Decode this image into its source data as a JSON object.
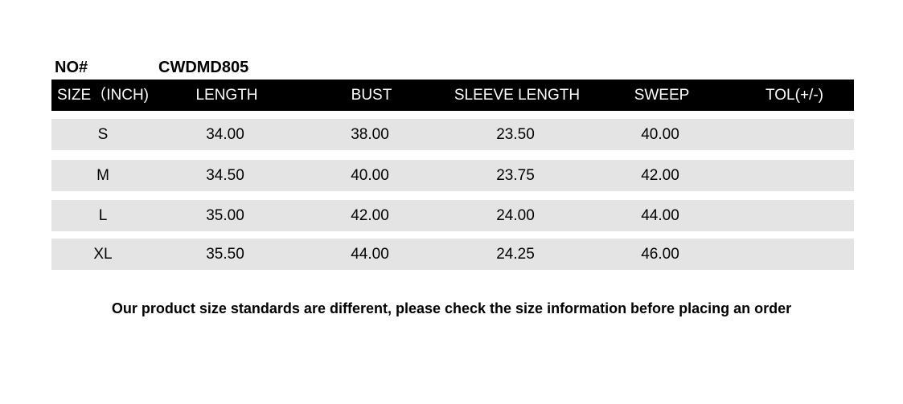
{
  "product": {
    "no_label": "NO#",
    "no_value": "CWDMD805"
  },
  "table": {
    "headers": [
      "SIZE（INCH)",
      "LENGTH",
      "BUST",
      "SLEEVE LENGTH",
      "SWEEP",
      "TOL(+/-)"
    ],
    "rows": [
      [
        "S",
        "34.00",
        "38.00",
        "23.50",
        "40.00",
        ""
      ],
      [
        "M",
        "34.50",
        "40.00",
        "23.75",
        "42.00",
        ""
      ],
      [
        "L",
        "35.00",
        "42.00",
        "24.00",
        "44.00",
        ""
      ],
      [
        "XL",
        "35.50",
        "44.00",
        "24.25",
        "46.00",
        ""
      ]
    ]
  },
  "note": "Our product size standards are different, please check the size information before placing an order",
  "colors": {
    "header_bg": "#000000",
    "row_bg": "#e4e4e4"
  }
}
